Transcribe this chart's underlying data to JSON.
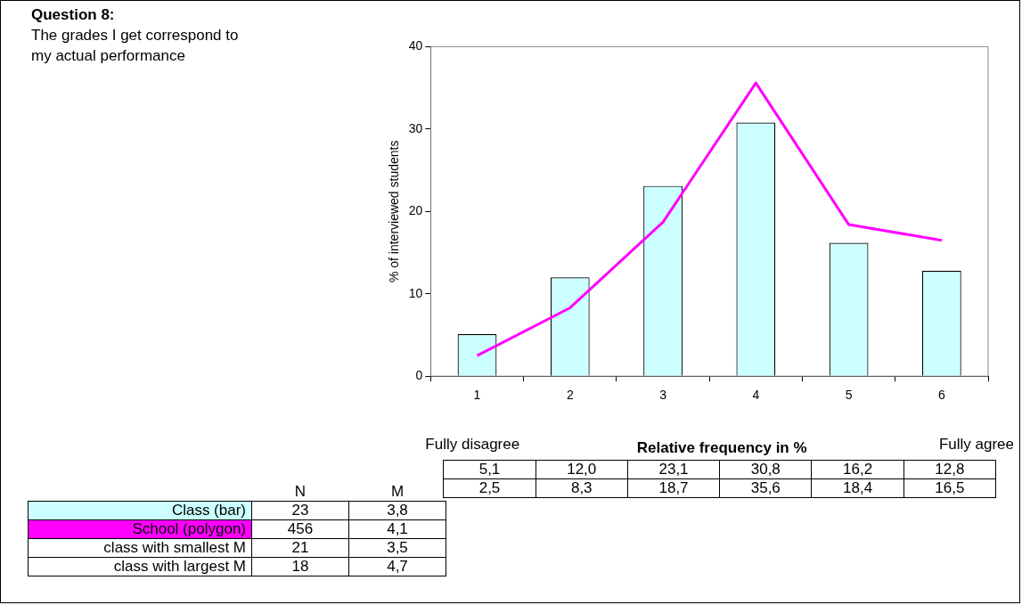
{
  "chart_data": {
    "type": "bar",
    "title": "Question 8:",
    "subtitle": "The grades I get correspond to my actual performance",
    "ylabel": "% of interviewed students",
    "categories": [
      "1",
      "2",
      "3",
      "4",
      "5",
      "6"
    ],
    "series": [
      {
        "name": "Class (bar)",
        "color": "#ccffff",
        "values": [
          5.1,
          12.0,
          23.1,
          30.8,
          16.2,
          12.8
        ],
        "value_labels": [
          "5,1",
          "12,0",
          "23,1",
          "30,8",
          "16,2",
          "12,8"
        ]
      },
      {
        "name": "School (polygon)",
        "type": "line",
        "color": "#ff00ff",
        "values": [
          2.5,
          8.3,
          18.7,
          35.6,
          18.4,
          16.5
        ],
        "value_labels": [
          "2,5",
          "8,3",
          "18,7",
          "35,6",
          "18,4",
          "16,5"
        ]
      }
    ],
    "ylim": [
      0,
      40
    ],
    "yticks": [
      0,
      10,
      20,
      30,
      40
    ],
    "grid": false,
    "legend": "bottom left",
    "marker": "none",
    "line_style": "solid",
    "annotations": [
      "Fully disagree",
      "Fully agree",
      "Relative frequency in %",
      "N",
      "M",
      "23",
      "3,8",
      "456",
      "4,1",
      "class with smallest M",
      "21",
      "3,5",
      "class with largest M",
      "18",
      "4,7"
    ]
  }
}
